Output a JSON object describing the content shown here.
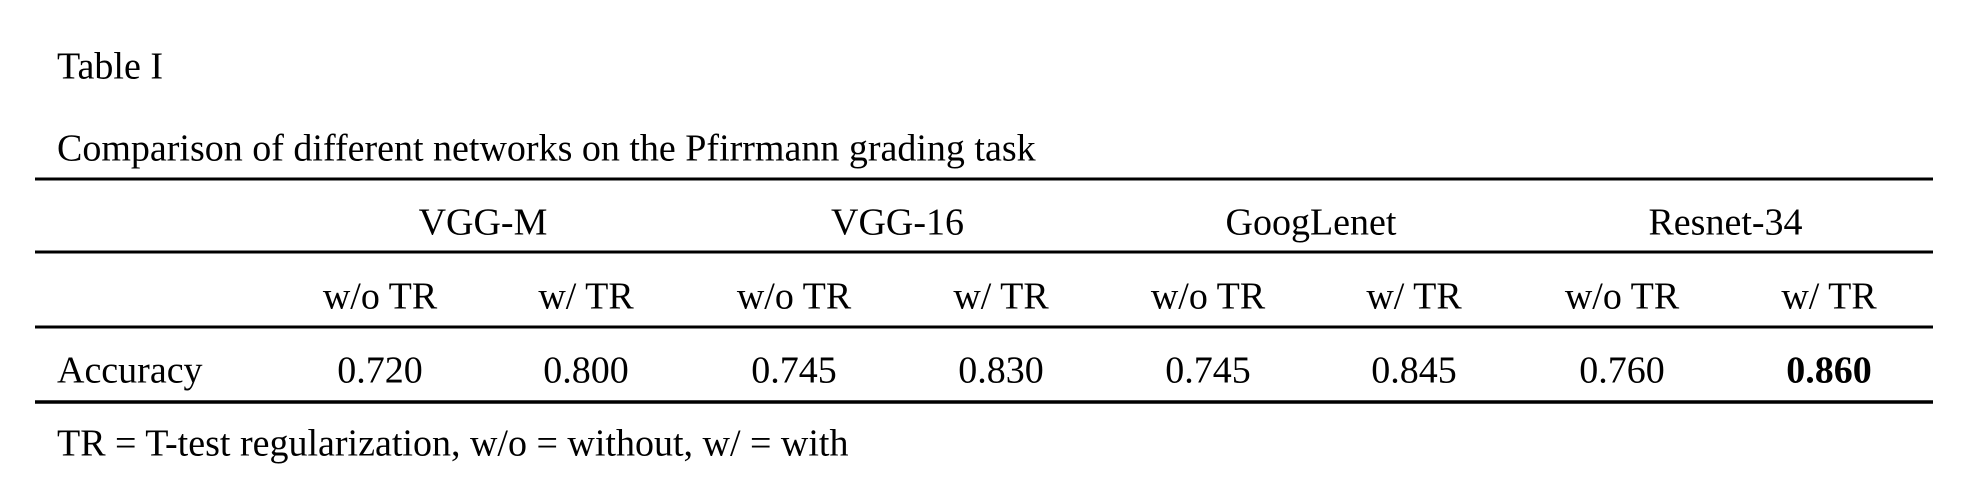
{
  "title": "Table I",
  "caption": "Comparison of different networks on the Pfirrmann grading task",
  "table": {
    "groups": [
      "VGG-M",
      "VGG-16",
      "GoogLenet",
      "Resnet-34"
    ],
    "subheaders": [
      "w/o TR",
      "w/ TR",
      "w/o TR",
      "w/ TR",
      "w/o TR",
      "w/ TR",
      "w/o TR",
      "w/ TR"
    ],
    "rows": [
      [
        "Accuracy",
        "0.720",
        "0.800",
        "0.745",
        "0.830",
        "0.745",
        "0.845",
        "0.760",
        "0.860"
      ]
    ]
  },
  "footnote": "TR = T-test regularization, w/o = without, w/ = with"
}
